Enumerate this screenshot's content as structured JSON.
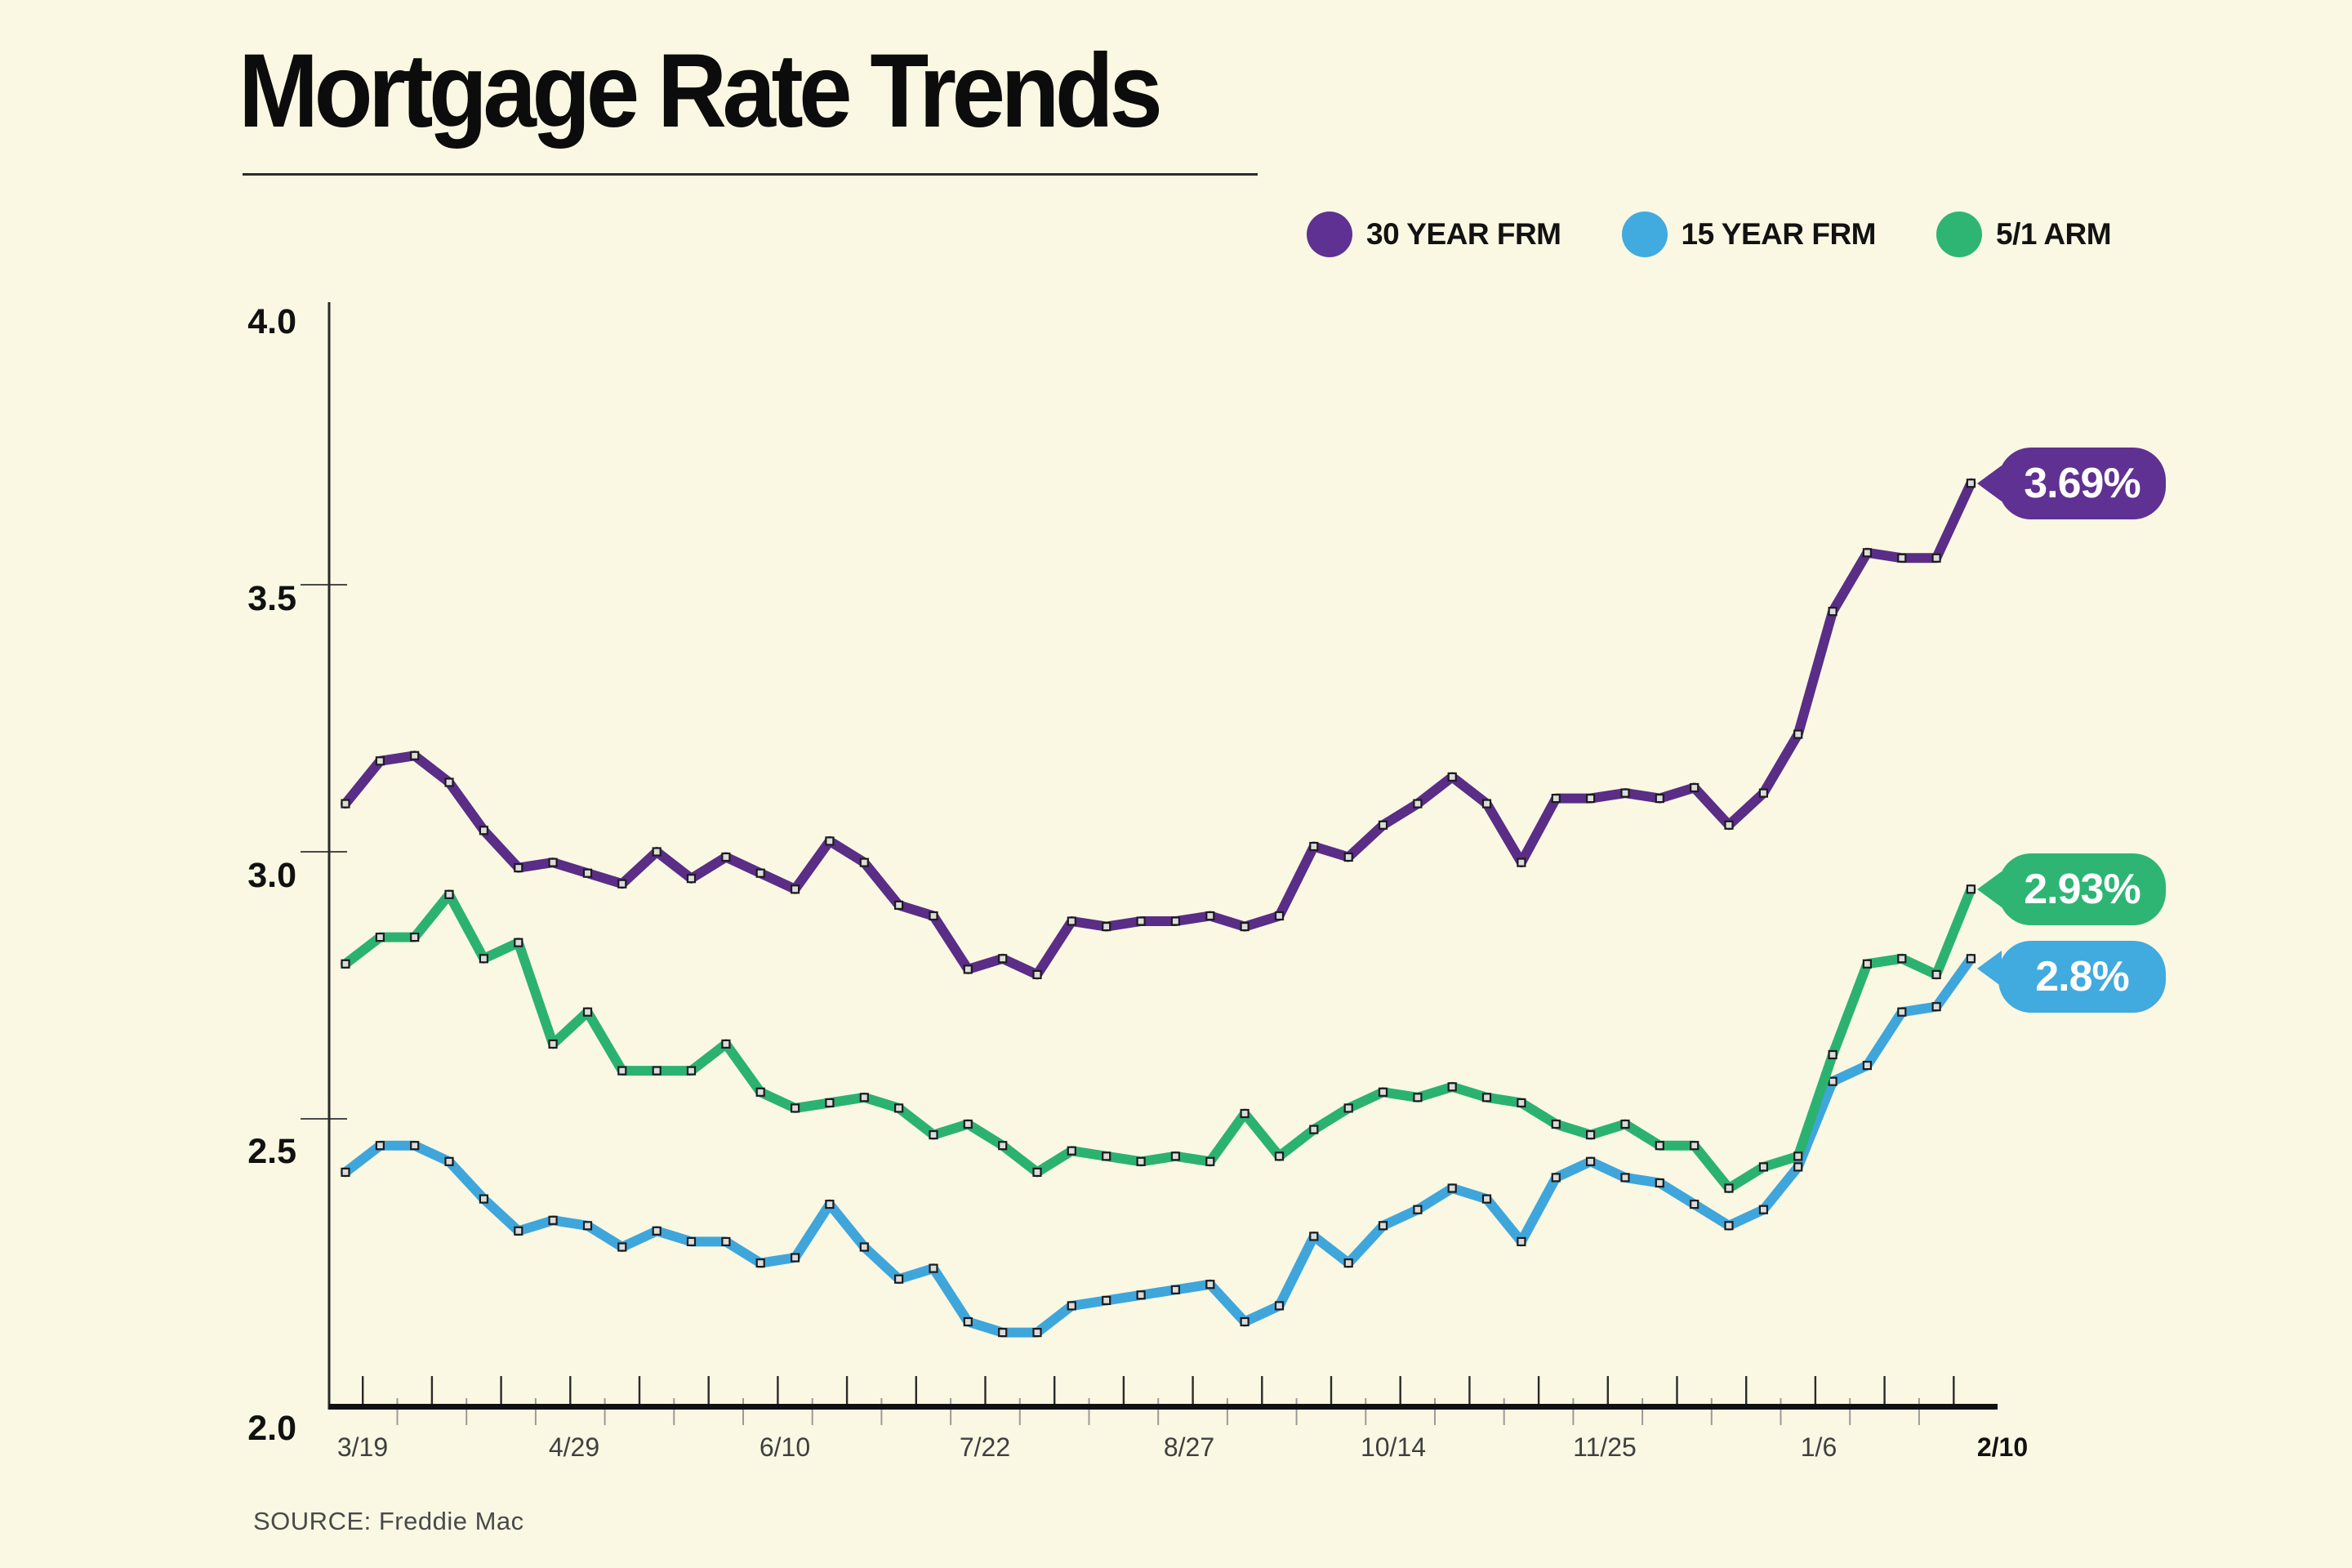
{
  "header": {
    "title": "Mortgage Rate Trends"
  },
  "legend": {
    "items": [
      {
        "label": "30 YEAR FRM",
        "color": "#5E3192"
      },
      {
        "label": "15 YEAR FRM",
        "color": "#41AADF"
      },
      {
        "label": "5/1 ARM",
        "color": "#2EB573"
      }
    ]
  },
  "callouts": [
    {
      "series": "30 YEAR FRM",
      "label": "3.69%",
      "color": "#5E3192"
    },
    {
      "series": "5/1 ARM",
      "label": "2.93%",
      "color": "#2EB573"
    },
    {
      "series": "15 YEAR FRM",
      "label": "2.8%",
      "color": "#41AADF"
    }
  ],
  "footer": {
    "source": "SOURCE: Freddie Mac"
  },
  "chart_data": {
    "type": "line",
    "title": "Mortgage Rate Trends",
    "xlabel": "",
    "ylabel": "",
    "ylim": [
      2.0,
      4.0
    ],
    "grid": false,
    "legend_position": "top-right",
    "weeks": 48,
    "y_axis": {
      "ticks": [
        "4.0",
        "3.5",
        "3.0",
        "2.5",
        "2.0"
      ],
      "gridline_values": [
        3.5,
        3.0,
        2.5
      ]
    },
    "x_axis": {
      "tick_labels": [
        {
          "label": "3/19",
          "pos": 0.5
        },
        {
          "label": "4/29",
          "pos": 6.6
        },
        {
          "label": "6/10",
          "pos": 12.7
        },
        {
          "label": "7/22",
          "pos": 18.5
        },
        {
          "label": "8/27",
          "pos": 24.4
        },
        {
          "label": "10/14",
          "pos": 30.3
        },
        {
          "label": "11/25",
          "pos": 36.4
        },
        {
          "label": "1/6",
          "pos": 42.6
        },
        {
          "label": "2/10",
          "pos": 47.9,
          "bold": true
        }
      ]
    },
    "series": [
      {
        "name": "30 YEAR FRM",
        "color": "#5A2D87",
        "end_label": "3.69%",
        "values": [
          3.09,
          3.17,
          3.18,
          3.13,
          3.04,
          2.97,
          2.98,
          2.96,
          2.94,
          3.0,
          2.95,
          2.99,
          2.96,
          2.93,
          3.02,
          2.98,
          2.9,
          2.88,
          2.78,
          2.8,
          2.77,
          2.87,
          2.86,
          2.87,
          2.87,
          2.88,
          2.86,
          2.88,
          3.01,
          2.99,
          3.05,
          3.09,
          3.14,
          3.09,
          2.98,
          3.1,
          3.1,
          3.11,
          3.1,
          3.12,
          3.05,
          3.11,
          3.22,
          3.45,
          3.56,
          3.55,
          3.55,
          3.69
        ]
      },
      {
        "name": "15 YEAR FRM",
        "color": "#3FA6DC",
        "end_label": "2.8%",
        "values": [
          2.4,
          2.45,
          2.45,
          2.42,
          2.35,
          2.29,
          2.31,
          2.3,
          2.26,
          2.29,
          2.27,
          2.27,
          2.23,
          2.24,
          2.34,
          2.26,
          2.2,
          2.22,
          2.12,
          2.1,
          2.1,
          2.15,
          2.16,
          2.17,
          2.18,
          2.19,
          2.12,
          2.15,
          2.28,
          2.23,
          2.3,
          2.33,
          2.37,
          2.35,
          2.27,
          2.39,
          2.42,
          2.39,
          2.38,
          2.34,
          2.3,
          2.33,
          2.41,
          2.57,
          2.6,
          2.7,
          2.71,
          2.8
        ]
      },
      {
        "name": "5/1 ARM",
        "color": "#2BB271",
        "end_label": "2.93%",
        "values": [
          2.79,
          2.84,
          2.84,
          2.92,
          2.8,
          2.83,
          2.64,
          2.7,
          2.59,
          2.59,
          2.59,
          2.64,
          2.55,
          2.52,
          2.53,
          2.54,
          2.52,
          2.47,
          2.49,
          2.45,
          2.4,
          2.44,
          2.43,
          2.42,
          2.43,
          2.42,
          2.51,
          2.43,
          2.48,
          2.52,
          2.55,
          2.54,
          2.56,
          2.54,
          2.53,
          2.49,
          2.47,
          2.49,
          2.45,
          2.45,
          2.37,
          2.41,
          2.43,
          2.62,
          2.79,
          2.8,
          2.77,
          2.93
        ]
      }
    ]
  }
}
